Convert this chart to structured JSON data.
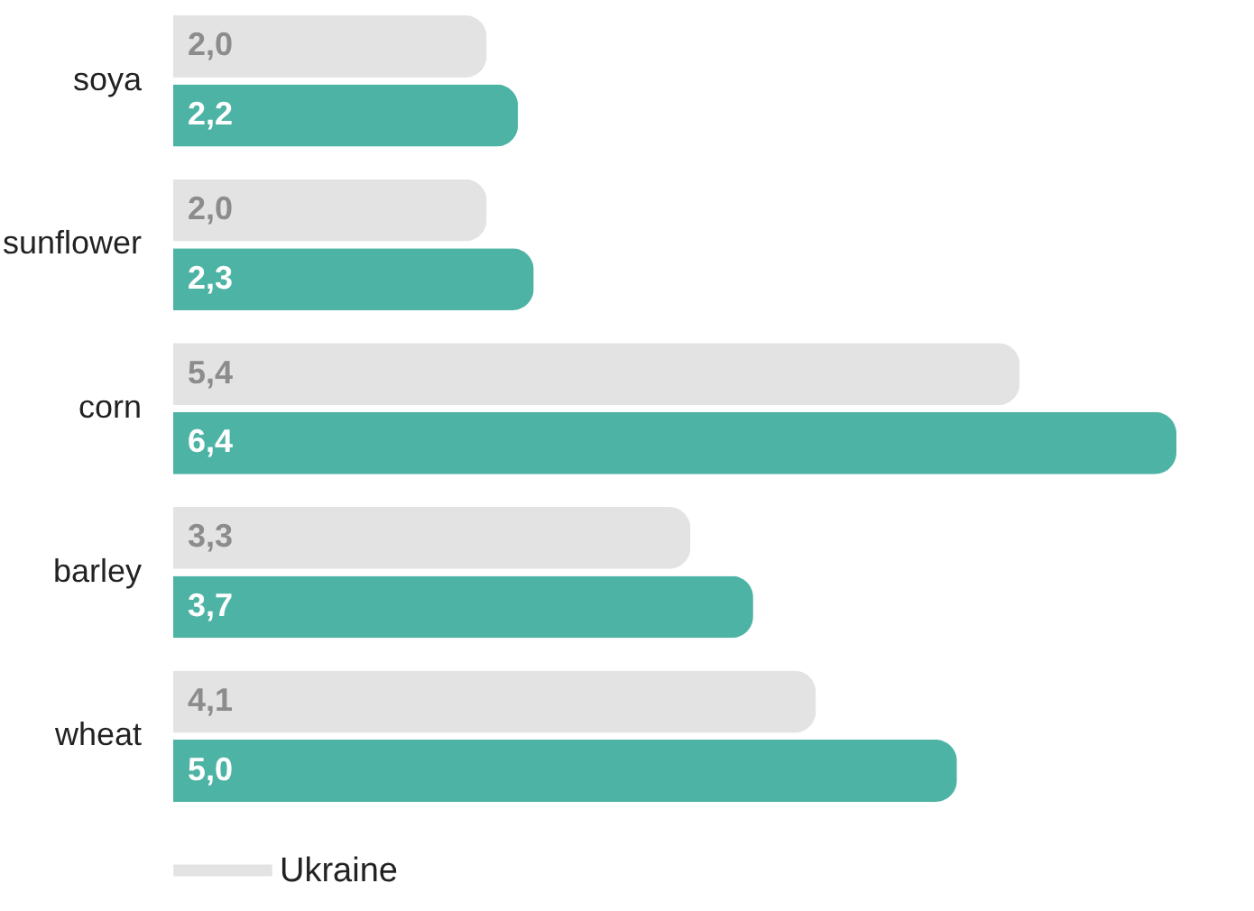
{
  "chart_data": {
    "type": "bar",
    "orientation": "horizontal",
    "categories": [
      "soya",
      "sunflower",
      "corn",
      "barley",
      "wheat"
    ],
    "series": [
      {
        "name": "Ukraine",
        "color": "#e3e3e3",
        "values": [
          2.0,
          2.0,
          5.4,
          3.3,
          4.1
        ],
        "value_labels": [
          "2,0",
          "2,0",
          "5,4",
          "3,3",
          "4,1"
        ]
      },
      {
        "color": "#4db3a4",
        "values": [
          2.2,
          2.3,
          6.4,
          3.7,
          5.0
        ],
        "value_labels": [
          "2,2",
          "2,3",
          "6,4",
          "3,7",
          "5,0"
        ]
      }
    ],
    "legend": "bottom"
  }
}
